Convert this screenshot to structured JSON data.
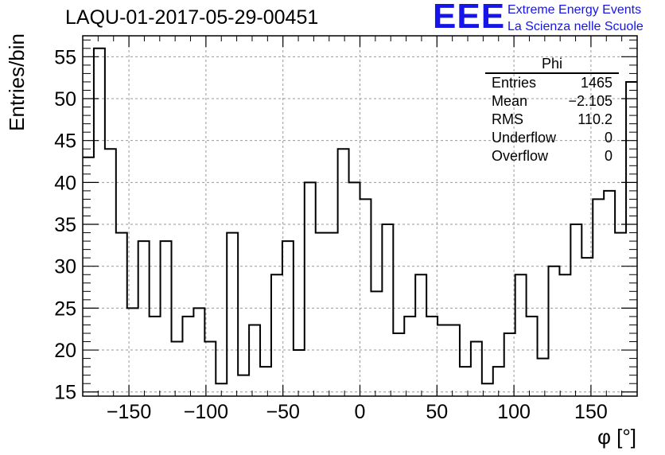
{
  "header": {
    "run_title": "LAQU-01-2017-05-29-00451"
  },
  "logo": {
    "letters": "EEE",
    "line1": "Extreme Energy Events",
    "line2": "La Scienza nelle Scuole",
    "color": "#1515e8"
  },
  "stats": {
    "title": "Phi",
    "rows": [
      {
        "label": "Entries",
        "value": "1465"
      },
      {
        "label": "Mean",
        "value": "−2.105"
      },
      {
        "label": "RMS",
        "value": "110.2"
      },
      {
        "label": "Underflow",
        "value": "0"
      },
      {
        "label": "Overflow",
        "value": "0"
      }
    ]
  },
  "chart_data": {
    "type": "histogram",
    "title": "LAQU-01-2017-05-29-00451",
    "xlabel": "φ [°]",
    "ylabel": "Entries/bin",
    "xlim": [
      -180,
      180
    ],
    "ylim": [
      14.5,
      57.5
    ],
    "bin_width": 7.2,
    "x_ticks": [
      -150,
      -100,
      -50,
      0,
      50,
      100,
      150
    ],
    "x_tick_labels": [
      "−150",
      "−100",
      "−50",
      "0",
      "50",
      "100",
      "150"
    ],
    "y_ticks": [
      15,
      20,
      25,
      30,
      35,
      40,
      45,
      50,
      55
    ],
    "y_tick_labels": [
      "15",
      "20",
      "25",
      "30",
      "35",
      "40",
      "45",
      "50",
      "55"
    ],
    "values": [
      43,
      56,
      44,
      34,
      25,
      33,
      24,
      33,
      21,
      24,
      25,
      21,
      16,
      34,
      17,
      23,
      18,
      29,
      33,
      20,
      40,
      34,
      34,
      44,
      40,
      38,
      27,
      35,
      22,
      24,
      29,
      24,
      23,
      23,
      18,
      21,
      16,
      18,
      22,
      29,
      24,
      19,
      30,
      29,
      35,
      31,
      38,
      39,
      34,
      52
    ],
    "grid": true,
    "line_color": "#000000"
  }
}
